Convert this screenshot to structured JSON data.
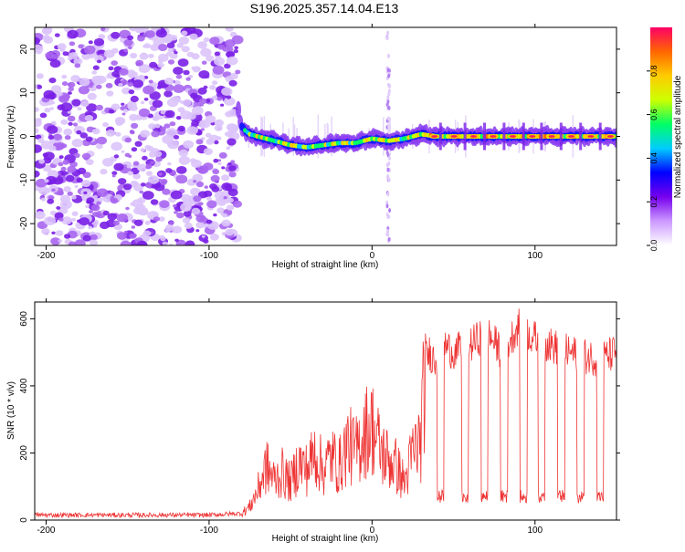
{
  "title": "S196.2025.357.14.04.E13",
  "chart_data": [
    {
      "type": "heatmap",
      "name": "spectrogram",
      "xlabel": "Height of straight line (km)",
      "ylabel": "Frequency (Hz)",
      "xlim": [
        -207,
        150
      ],
      "ylim": [
        -25,
        25
      ],
      "x_ticks": [
        -200,
        -100,
        0,
        100
      ],
      "y_ticks": [
        -20,
        -10,
        0,
        10,
        20
      ],
      "noise_region_x": [
        -207,
        -82
      ],
      "vertical_artifact_x": [
        9,
        11
      ],
      "signal_track": {
        "x": [
          -82,
          -80,
          -75,
          -70,
          -60,
          -50,
          -40,
          -30,
          -20,
          -10,
          0,
          10,
          20,
          30,
          40,
          50,
          60,
          70,
          80,
          90,
          100,
          110,
          120,
          130,
          140,
          150
        ],
        "freq": [
          6,
          2,
          0.5,
          0,
          -1,
          -2,
          -2.5,
          -2,
          -1.5,
          -1.5,
          -0.5,
          -1,
          -0.5,
          0.5,
          0,
          0,
          0,
          0,
          0,
          0,
          0,
          0,
          0,
          0,
          0,
          0
        ]
      },
      "colorbar": {
        "label": "Normalized spectral amplitude",
        "range": [
          0,
          1
        ],
        "ticks": [
          "0.0",
          "0.2",
          "0.4",
          "0.6",
          "0.8"
        ],
        "tick_values": [
          0,
          0.2,
          0.4,
          0.6,
          0.8
        ],
        "colors": [
          "#ffffff",
          "#cc99ff",
          "#7700ee",
          "#0000ff",
          "#00ccff",
          "#00ff66",
          "#ccff00",
          "#ffcc00",
          "#ff6600",
          "#ff0066"
        ]
      }
    },
    {
      "type": "line",
      "name": "snr",
      "xlabel": "Height of straight line (km)",
      "ylabel": "SNR (10 * v/v)",
      "xlim": [
        -207,
        150
      ],
      "ylim": [
        0,
        650
      ],
      "x_ticks": [
        -200,
        -100,
        0,
        100
      ],
      "y_ticks": [
        0,
        200,
        400,
        600
      ],
      "color": "#ee3333",
      "series": [
        {
          "name": "SNR",
          "x": [
            -207,
            -150,
            -100,
            -80,
            -75,
            -70,
            -65,
            -60,
            -55,
            -50,
            -45,
            -40,
            -35,
            -30,
            -25,
            -20,
            -15,
            -10,
            -5,
            0,
            5,
            10,
            15,
            20,
            25,
            30,
            33,
            35,
            40,
            45,
            50,
            60,
            70,
            80,
            90,
            100,
            110,
            120,
            130,
            140,
            150
          ],
          "y": [
            15,
            15,
            15,
            20,
            40,
            90,
            160,
            120,
            140,
            110,
            170,
            150,
            200,
            150,
            190,
            160,
            230,
            200,
            260,
            280,
            210,
            180,
            160,
            110,
            200,
            240,
            480,
            500,
            470,
            520,
            500,
            520,
            560,
            500,
            580,
            540,
            520,
            500,
            490,
            480,
            500
          ]
        }
      ],
      "dropouts_x": [
        42,
        57,
        69,
        81,
        93,
        104,
        116,
        128,
        140
      ],
      "dropout_level": 70
    }
  ]
}
